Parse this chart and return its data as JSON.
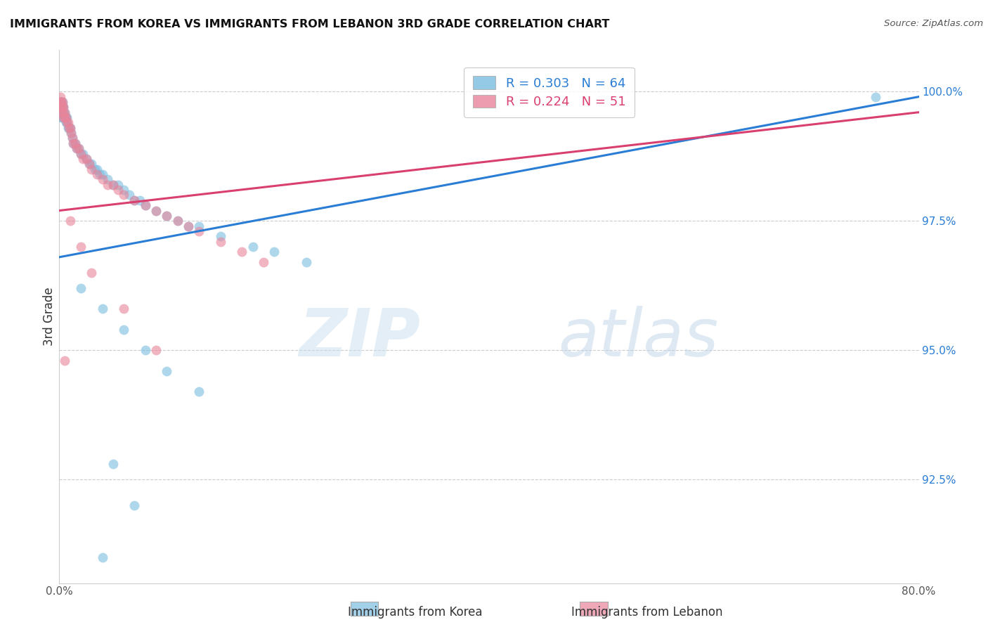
{
  "title": "IMMIGRANTS FROM KOREA VS IMMIGRANTS FROM LEBANON 3RD GRADE CORRELATION CHART",
  "source": "Source: ZipAtlas.com",
  "ylabel_label": "3rd Grade",
  "xlim": [
    0.0,
    0.8
  ],
  "ylim": [
    0.905,
    1.008
  ],
  "ytick_positions": [
    0.925,
    0.95,
    0.975,
    1.0
  ],
  "ytick_labels": [
    "92.5%",
    "95.0%",
    "97.5%",
    "100.0%"
  ],
  "xtick_positions": [
    0.0,
    0.1,
    0.2,
    0.3,
    0.4,
    0.5,
    0.6,
    0.7,
    0.8
  ],
  "xtick_labels": [
    "0.0%",
    "",
    "",
    "",
    "",
    "",
    "",
    "",
    "80.0%"
  ],
  "korea_R": 0.303,
  "korea_N": 64,
  "lebanon_R": 0.224,
  "lebanon_N": 51,
  "korea_color": "#7bbde0",
  "lebanon_color": "#e8849a",
  "korea_line_color": "#2a7dd4",
  "lebanon_line_color": "#d94070",
  "legend_korea": "Immigrants from Korea",
  "legend_lebanon": "Immigrants from Lebanon",
  "watermark_zip": "ZIP",
  "watermark_atlas": "atlas",
  "korea_x": [
    0.001,
    0.001,
    0.001,
    0.002,
    0.002,
    0.002,
    0.002,
    0.003,
    0.003,
    0.003,
    0.003,
    0.004,
    0.004,
    0.005,
    0.005,
    0.006,
    0.006,
    0.007,
    0.007,
    0.008,
    0.009,
    0.01,
    0.011,
    0.012,
    0.013,
    0.015,
    0.016,
    0.018,
    0.02,
    0.022,
    0.025,
    0.028,
    0.03,
    0.033,
    0.035,
    0.038,
    0.04,
    0.045,
    0.05,
    0.055,
    0.06,
    0.065,
    0.07,
    0.075,
    0.08,
    0.09,
    0.1,
    0.11,
    0.12,
    0.13,
    0.15,
    0.18,
    0.2,
    0.23,
    0.02,
    0.04,
    0.06,
    0.08,
    0.1,
    0.13,
    0.05,
    0.07,
    0.04,
    0.76
  ],
  "korea_y": [
    0.998,
    0.998,
    0.997,
    0.998,
    0.997,
    0.996,
    0.995,
    0.998,
    0.997,
    0.996,
    0.995,
    0.997,
    0.996,
    0.996,
    0.995,
    0.995,
    0.994,
    0.995,
    0.994,
    0.993,
    0.993,
    0.993,
    0.992,
    0.991,
    0.99,
    0.99,
    0.989,
    0.989,
    0.988,
    0.988,
    0.987,
    0.986,
    0.986,
    0.985,
    0.985,
    0.984,
    0.984,
    0.983,
    0.982,
    0.982,
    0.981,
    0.98,
    0.979,
    0.979,
    0.978,
    0.977,
    0.976,
    0.975,
    0.974,
    0.974,
    0.972,
    0.97,
    0.969,
    0.967,
    0.962,
    0.958,
    0.954,
    0.95,
    0.946,
    0.942,
    0.928,
    0.92,
    0.91,
    0.999
  ],
  "lebanon_x": [
    0.001,
    0.001,
    0.001,
    0.002,
    0.002,
    0.002,
    0.003,
    0.003,
    0.003,
    0.004,
    0.004,
    0.005,
    0.005,
    0.006,
    0.007,
    0.008,
    0.009,
    0.01,
    0.011,
    0.012,
    0.013,
    0.015,
    0.016,
    0.018,
    0.02,
    0.022,
    0.025,
    0.028,
    0.03,
    0.035,
    0.04,
    0.045,
    0.05,
    0.055,
    0.06,
    0.07,
    0.08,
    0.09,
    0.1,
    0.11,
    0.12,
    0.13,
    0.15,
    0.17,
    0.19,
    0.01,
    0.02,
    0.03,
    0.06,
    0.09,
    0.005
  ],
  "lebanon_y": [
    0.999,
    0.998,
    0.997,
    0.998,
    0.997,
    0.996,
    0.998,
    0.997,
    0.996,
    0.997,
    0.995,
    0.996,
    0.995,
    0.995,
    0.994,
    0.994,
    0.993,
    0.993,
    0.992,
    0.991,
    0.99,
    0.99,
    0.989,
    0.989,
    0.988,
    0.987,
    0.987,
    0.986,
    0.985,
    0.984,
    0.983,
    0.982,
    0.982,
    0.981,
    0.98,
    0.979,
    0.978,
    0.977,
    0.976,
    0.975,
    0.974,
    0.973,
    0.971,
    0.969,
    0.967,
    0.975,
    0.97,
    0.965,
    0.958,
    0.95,
    0.948
  ]
}
